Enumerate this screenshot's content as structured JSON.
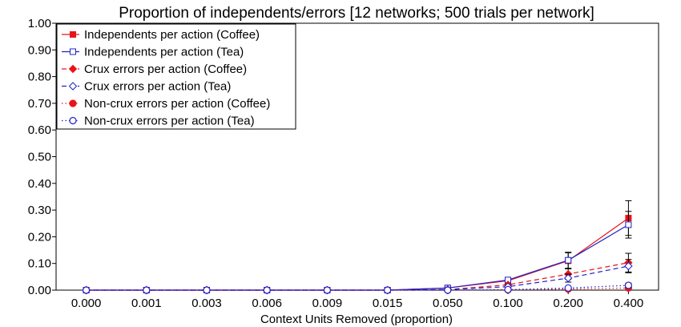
{
  "chart_data": {
    "type": "line",
    "title": "Proportion of independents/errors [12 networks; 500 trials per network]",
    "xlabel": "Context Units Removed (proportion)",
    "ylabel": "",
    "categories": [
      "0.000",
      "0.001",
      "0.003",
      "0.006",
      "0.009",
      "0.015",
      "0.050",
      "0.100",
      "0.200",
      "0.400"
    ],
    "y_ticks": [
      "0.00",
      "0.10",
      "0.20",
      "0.30",
      "0.40",
      "0.50",
      "0.60",
      "0.70",
      "0.80",
      "0.90",
      "1.00"
    ],
    "ylim": [
      0,
      1
    ],
    "grid": false,
    "legend_position": "top-left",
    "series": [
      {
        "name": "Independents per action (Coffee)",
        "color": "#e8141b",
        "line": "solid",
        "marker": "square-filled",
        "values": [
          0,
          0,
          0,
          0,
          0,
          0,
          0.008,
          0.035,
          0.11,
          0.27
        ],
        "error": [
          0,
          0,
          0,
          0,
          0,
          0,
          0.004,
          0.01,
          0.03,
          0.065
        ]
      },
      {
        "name": "Independents per action (Tea)",
        "color": "#2121c9",
        "line": "solid",
        "marker": "square-open",
        "values": [
          0,
          0,
          0,
          0,
          0,
          0,
          0.008,
          0.038,
          0.112,
          0.245
        ],
        "error": [
          0,
          0,
          0,
          0,
          0,
          0,
          0.004,
          0.01,
          0.03,
          0.05
        ]
      },
      {
        "name": "Crux errors per action (Coffee)",
        "color": "#e8141b",
        "line": "dashed",
        "marker": "diamond-filled",
        "values": [
          0,
          0,
          0,
          0,
          0,
          0,
          0.002,
          0.02,
          0.06,
          0.103
        ],
        "error": [
          0,
          0,
          0,
          0,
          0,
          0,
          0.002,
          0.006,
          0.02,
          0.035
        ]
      },
      {
        "name": "Crux errors per action (Tea)",
        "color": "#2121c9",
        "line": "dashed",
        "marker": "diamond-open",
        "values": [
          0,
          0,
          0,
          0,
          0,
          0,
          0.002,
          0.013,
          0.045,
          0.09
        ],
        "error": [
          0,
          0,
          0,
          0,
          0,
          0,
          0.002,
          0.005,
          0.015,
          0.025
        ]
      },
      {
        "name": "Non-crux errors per action (Coffee)",
        "color": "#e8141b",
        "line": "dotted",
        "marker": "circle-filled",
        "values": [
          0,
          0,
          0,
          0,
          0,
          0,
          0.0,
          0.001,
          0.004,
          0.008
        ],
        "error": [
          0,
          0,
          0,
          0,
          0,
          0,
          0,
          0.001,
          0.003,
          0.006
        ]
      },
      {
        "name": "Non-crux errors per action (Tea)",
        "color": "#2121c9",
        "line": "dotted",
        "marker": "circle-open",
        "values": [
          0,
          0,
          0,
          0,
          0,
          0,
          0.0,
          0.002,
          0.008,
          0.018
        ],
        "error": [
          0,
          0,
          0,
          0,
          0,
          0,
          0,
          0.001,
          0.004,
          0.008
        ]
      }
    ]
  }
}
